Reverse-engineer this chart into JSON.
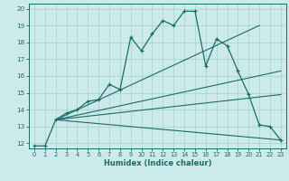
{
  "xlabel": "Humidex (Indice chaleur)",
  "xlim": [
    -0.5,
    23.5
  ],
  "ylim": [
    11.7,
    20.3
  ],
  "xticks": [
    0,
    1,
    2,
    3,
    4,
    5,
    6,
    7,
    8,
    9,
    10,
    11,
    12,
    13,
    14,
    15,
    16,
    17,
    18,
    19,
    20,
    21,
    22,
    23
  ],
  "yticks": [
    12,
    13,
    14,
    15,
    16,
    17,
    18,
    19,
    20
  ],
  "bg_color": "#cceaea",
  "grid_color": "#aed4d4",
  "line_color": "#1a6b6b",
  "line1_x": [
    0,
    1,
    2,
    3,
    4,
    5,
    6,
    7,
    8,
    9,
    10,
    11,
    12,
    13,
    14,
    15,
    16,
    17,
    18,
    19,
    20,
    21,
    22,
    23
  ],
  "line1_y": [
    11.85,
    11.85,
    13.4,
    13.8,
    14.0,
    14.5,
    14.6,
    15.5,
    15.2,
    18.3,
    17.5,
    18.5,
    19.3,
    19.0,
    19.85,
    19.85,
    16.6,
    18.2,
    17.8,
    16.3,
    14.9,
    13.1,
    13.0,
    12.2
  ],
  "line2_x": [
    2,
    23
  ],
  "line2_y": [
    13.4,
    12.2
  ],
  "line3_x": [
    2,
    23
  ],
  "line3_y": [
    13.4,
    14.9
  ],
  "line4_x": [
    2,
    23
  ],
  "line4_y": [
    13.4,
    16.3
  ],
  "line5_x": [
    2,
    21
  ],
  "line5_y": [
    13.4,
    19.0
  ],
  "figsize": [
    3.2,
    2.0
  ],
  "dpi": 100
}
